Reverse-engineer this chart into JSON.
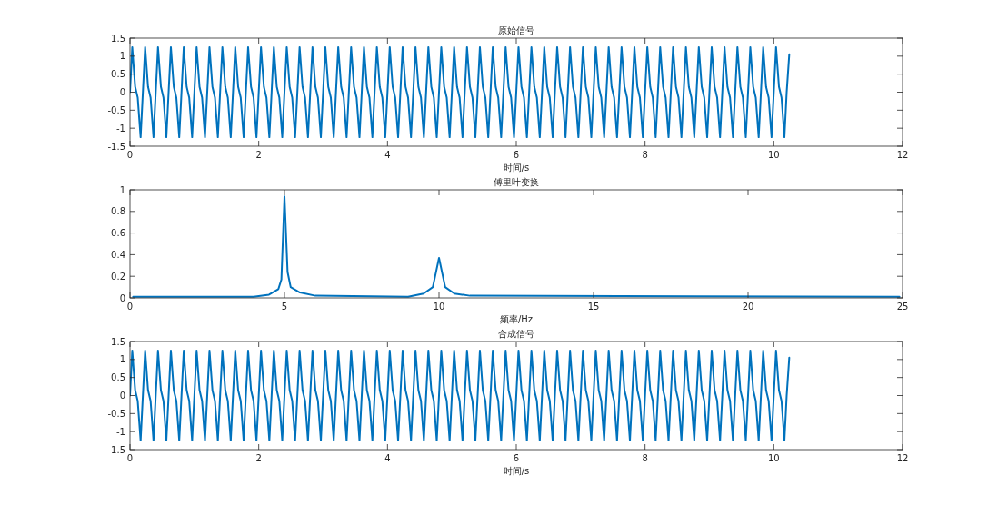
{
  "chart_data": [
    {
      "type": "line",
      "title": "原始信号",
      "xlabel": "时间/s",
      "xlim": [
        0,
        12
      ],
      "ylim": [
        -1.5,
        1.5
      ],
      "xticks": [
        0,
        2,
        4,
        6,
        8,
        10,
        12
      ],
      "yticks": [
        -1.5,
        -1,
        -0.5,
        0,
        0.5,
        1,
        1.5
      ],
      "grid": false,
      "series": [
        {
          "color": "#0072bd",
          "x": [
            0,
            0.035,
            0.08,
            0.12,
            0.165,
            0.2,
            0.235,
            0.28,
            0.32,
            0.365,
            0.4,
            0.435,
            0.48,
            0.52,
            0.565,
            0.6,
            0.635,
            0.68,
            0.72,
            0.765,
            0.8,
            0.835,
            0.88,
            0.92,
            0.965,
            1,
            1.035,
            1.08,
            1.12,
            1.165,
            1.2,
            1.235,
            1.28,
            1.32,
            1.365,
            1.4,
            1.435,
            1.48,
            1.52,
            1.565,
            1.6,
            1.635,
            1.68,
            1.72,
            1.765,
            1.8,
            1.835,
            1.88,
            1.92,
            1.965,
            2,
            2.035,
            2.08,
            2.12,
            2.165,
            2.2,
            2.235,
            2.28,
            2.32,
            2.365,
            2.4,
            2.435,
            2.48,
            2.52,
            2.565,
            2.6,
            2.635,
            2.68,
            2.72,
            2.765,
            2.8,
            2.835,
            2.88,
            2.92,
            2.965,
            3,
            3.035,
            3.08,
            3.12,
            3.165,
            3.2,
            3.235,
            3.28,
            3.32,
            3.365,
            3.4,
            3.435,
            3.48,
            3.52,
            3.565,
            3.6,
            3.635,
            3.68,
            3.72,
            3.765,
            3.8,
            3.835,
            3.88,
            3.92,
            3.965,
            4,
            4.035,
            4.08,
            4.12,
            4.165,
            4.2,
            4.235,
            4.28,
            4.32,
            4.365,
            4.4,
            4.435,
            4.48,
            4.52,
            4.565,
            4.6,
            4.635,
            4.68,
            4.72,
            4.765,
            4.8,
            4.835,
            4.88,
            4.92,
            4.965,
            5,
            5.035,
            5.08,
            5.12,
            5.165,
            5.2,
            5.235,
            5.28,
            5.32,
            5.365,
            5.4,
            5.435,
            5.48,
            5.52,
            5.565,
            5.6,
            5.635,
            5.68,
            5.72,
            5.765,
            5.8,
            5.835,
            5.88,
            5.92,
            5.965,
            6,
            6.035,
            6.08,
            6.12,
            6.165,
            6.2,
            6.235,
            6.28,
            6.32,
            6.365,
            6.4,
            6.435,
            6.48,
            6.52,
            6.565,
            6.6,
            6.635,
            6.68,
            6.72,
            6.765,
            6.8,
            6.835,
            6.88,
            6.92,
            6.965,
            7,
            7.035,
            7.08,
            7.12,
            7.165,
            7.2,
            7.235,
            7.28,
            7.32,
            7.365,
            7.4,
            7.435,
            7.48,
            7.52,
            7.565,
            7.6,
            7.635,
            7.68,
            7.72,
            7.765,
            7.8,
            7.835,
            7.88,
            7.92,
            7.965,
            8,
            8.035,
            8.08,
            8.12,
            8.165,
            8.2,
            8.235,
            8.28,
            8.32,
            8.365,
            8.4,
            8.435,
            8.48,
            8.52,
            8.565,
            8.6,
            8.635,
            8.68,
            8.72,
            8.765,
            8.8,
            8.835,
            8.88,
            8.92,
            8.965,
            9,
            9.035,
            9.08,
            9.12,
            9.165,
            9.2,
            9.235,
            9.28,
            9.32,
            9.365,
            9.4,
            9.435,
            9.48,
            9.52,
            9.565,
            9.6,
            9.635,
            9.68,
            9.72,
            9.765,
            9.8,
            9.835,
            9.88,
            9.92,
            9.965,
            10,
            10.035,
            10.08,
            10.12,
            10.165,
            10.2,
            10.24
          ],
          "values": [
            0,
            1.25,
            0.15,
            -0.15,
            -1.25,
            0,
            1.25,
            0.15,
            -0.15,
            -1.25,
            0,
            1.25,
            0.15,
            -0.15,
            -1.25,
            0,
            1.25,
            0.15,
            -0.15,
            -1.25,
            0,
            1.25,
            0.15,
            -0.15,
            -1.25,
            0,
            1.25,
            0.15,
            -0.15,
            -1.25,
            0,
            1.25,
            0.15,
            -0.15,
            -1.25,
            0,
            1.25,
            0.15,
            -0.15,
            -1.25,
            0,
            1.25,
            0.15,
            -0.15,
            -1.25,
            0,
            1.25,
            0.15,
            -0.15,
            -1.25,
            0,
            1.25,
            0.15,
            -0.15,
            -1.25,
            0,
            1.25,
            0.15,
            -0.15,
            -1.25,
            0,
            1.25,
            0.15,
            -0.15,
            -1.25,
            0,
            1.25,
            0.15,
            -0.15,
            -1.25,
            0,
            1.25,
            0.15,
            -0.15,
            -1.25,
            0,
            1.25,
            0.15,
            -0.15,
            -1.25,
            0,
            1.25,
            0.15,
            -0.15,
            -1.25,
            0,
            1.25,
            0.15,
            -0.15,
            -1.25,
            0,
            1.25,
            0.15,
            -0.15,
            -1.25,
            0,
            1.25,
            0.15,
            -0.15,
            -1.25,
            0,
            1.25,
            0.15,
            -0.15,
            -1.25,
            0,
            1.25,
            0.15,
            -0.15,
            -1.25,
            0,
            1.25,
            0.15,
            -0.15,
            -1.25,
            0,
            1.25,
            0.15,
            -0.15,
            -1.25,
            0,
            1.25,
            0.15,
            -0.15,
            -1.25,
            0,
            1.25,
            0.15,
            -0.15,
            -1.25,
            0,
            1.25,
            0.15,
            -0.15,
            -1.25,
            0,
            1.25,
            0.15,
            -0.15,
            -1.25,
            0,
            1.25,
            0.15,
            -0.15,
            -1.25,
            0,
            1.25,
            0.15,
            -0.15,
            -1.25,
            0,
            1.25,
            0.15,
            -0.15,
            -1.25,
            0,
            1.25,
            0.15,
            -0.15,
            -1.25,
            0,
            1.25,
            0.15,
            -0.15,
            -1.25,
            0,
            1.25,
            0.15,
            -0.15,
            -1.25,
            0,
            1.25,
            0.15,
            -0.15,
            -1.25,
            0,
            1.25,
            0.15,
            -0.15,
            -1.25,
            0,
            1.25,
            0.15,
            -0.15,
            -1.25,
            0,
            1.25,
            0.15,
            -0.15,
            -1.25,
            0,
            1.25,
            0.15,
            -0.15,
            -1.25,
            0,
            1.25,
            0.15,
            -0.15,
            -1.25,
            0,
            1.25,
            0.15,
            -0.15,
            -1.25,
            0,
            1.25,
            0.15,
            -0.15,
            -1.25,
            0,
            1.25,
            0.15,
            -0.15,
            -1.25,
            0,
            1.25,
            0.15,
            -0.15,
            -1.25,
            0,
            1.25,
            0.15,
            -0.15,
            -1.25,
            0,
            1.25,
            0.15,
            -0.15,
            -1.25,
            0,
            1.25,
            0.15,
            -0.15,
            -1.25,
            0,
            1.25,
            0.15,
            -0.15,
            -1.25,
            0,
            1.25,
            0.15,
            -0.15,
            -1.25,
            0,
            1.25,
            0.15,
            -0.15,
            -1.25,
            0,
            1.25,
            0.15,
            -0.15,
            -1.25,
            0,
            1.05
          ]
        }
      ]
    },
    {
      "type": "line",
      "title": "傅里叶变换",
      "xlabel": "频率/Hz",
      "xlim": [
        0,
        25
      ],
      "ylim": [
        0,
        1
      ],
      "xticks": [
        0,
        5,
        10,
        15,
        20,
        25
      ],
      "yticks": [
        0,
        0.2,
        0.4,
        0.6,
        0.8,
        1
      ],
      "grid": false,
      "series": [
        {
          "color": "#0072bd",
          "x": [
            0.1,
            4,
            4.5,
            4.8,
            4.9,
            5,
            5.1,
            5.2,
            5.5,
            6,
            9,
            9.5,
            9.8,
            10,
            10.2,
            10.5,
            11,
            24.9
          ],
          "values": [
            0.01,
            0.01,
            0.03,
            0.08,
            0.17,
            0.94,
            0.24,
            0.1,
            0.05,
            0.02,
            0.01,
            0.04,
            0.1,
            0.37,
            0.1,
            0.04,
            0.02,
            0.01
          ]
        }
      ]
    },
    {
      "type": "line",
      "title": "合成信号",
      "xlabel": "时间/s",
      "xlim": [
        0,
        12
      ],
      "ylim": [
        -1.5,
        1.5
      ],
      "xticks": [
        0,
        2,
        4,
        6,
        8,
        10,
        12
      ],
      "yticks": [
        -1.5,
        -1,
        -0.5,
        0,
        0.5,
        1,
        1.5
      ],
      "grid": false,
      "series": [
        {
          "color": "#0072bd",
          "x": [
            0,
            0.035,
            0.08,
            0.12,
            0.165,
            0.2,
            0.235,
            0.28,
            0.32,
            0.365,
            0.4,
            0.435,
            0.48,
            0.52,
            0.565,
            0.6,
            0.635,
            0.68,
            0.72,
            0.765,
            0.8,
            0.835,
            0.88,
            0.92,
            0.965,
            1,
            1.035,
            1.08,
            1.12,
            1.165,
            1.2,
            1.235,
            1.28,
            1.32,
            1.365,
            1.4,
            1.435,
            1.48,
            1.52,
            1.565,
            1.6,
            1.635,
            1.68,
            1.72,
            1.765,
            1.8,
            1.835,
            1.88,
            1.92,
            1.965,
            2,
            2.035,
            2.08,
            2.12,
            2.165,
            2.2,
            2.235,
            2.28,
            2.32,
            2.365,
            2.4,
            2.435,
            2.48,
            2.52,
            2.565,
            2.6,
            2.635,
            2.68,
            2.72,
            2.765,
            2.8,
            2.835,
            2.88,
            2.92,
            2.965,
            3,
            3.035,
            3.08,
            3.12,
            3.165,
            3.2,
            3.235,
            3.28,
            3.32,
            3.365,
            3.4,
            3.435,
            3.48,
            3.52,
            3.565,
            3.6,
            3.635,
            3.68,
            3.72,
            3.765,
            3.8,
            3.835,
            3.88,
            3.92,
            3.965,
            4,
            4.035,
            4.08,
            4.12,
            4.165,
            4.2,
            4.235,
            4.28,
            4.32,
            4.365,
            4.4,
            4.435,
            4.48,
            4.52,
            4.565,
            4.6,
            4.635,
            4.68,
            4.72,
            4.765,
            4.8,
            4.835,
            4.88,
            4.92,
            4.965,
            5,
            5.035,
            5.08,
            5.12,
            5.165,
            5.2,
            5.235,
            5.28,
            5.32,
            5.365,
            5.4,
            5.435,
            5.48,
            5.52,
            5.565,
            5.6,
            5.635,
            5.68,
            5.72,
            5.765,
            5.8,
            5.835,
            5.88,
            5.92,
            5.965,
            6,
            6.035,
            6.08,
            6.12,
            6.165,
            6.2,
            6.235,
            6.28,
            6.32,
            6.365,
            6.4,
            6.435,
            6.48,
            6.52,
            6.565,
            6.6,
            6.635,
            6.68,
            6.72,
            6.765,
            6.8,
            6.835,
            6.88,
            6.92,
            6.965,
            7,
            7.035,
            7.08,
            7.12,
            7.165,
            7.2,
            7.235,
            7.28,
            7.32,
            7.365,
            7.4,
            7.435,
            7.48,
            7.52,
            7.565,
            7.6,
            7.635,
            7.68,
            7.72,
            7.765,
            7.8,
            7.835,
            7.88,
            7.92,
            7.965,
            8,
            8.035,
            8.08,
            8.12,
            8.165,
            8.2,
            8.235,
            8.28,
            8.32,
            8.365,
            8.4,
            8.435,
            8.48,
            8.52,
            8.565,
            8.6,
            8.635,
            8.68,
            8.72,
            8.765,
            8.8,
            8.835,
            8.88,
            8.92,
            8.965,
            9,
            9.035,
            9.08,
            9.12,
            9.165,
            9.2,
            9.235,
            9.28,
            9.32,
            9.365,
            9.4,
            9.435,
            9.48,
            9.52,
            9.565,
            9.6,
            9.635,
            9.68,
            9.72,
            9.765,
            9.8,
            9.835,
            9.88,
            9.92,
            9.965,
            10,
            10.035,
            10.08,
            10.12,
            10.165,
            10.2,
            10.24
          ],
          "values": [
            0,
            1.25,
            0.15,
            -0.15,
            -1.25,
            0,
            1.25,
            0.15,
            -0.15,
            -1.25,
            0,
            1.25,
            0.15,
            -0.15,
            -1.25,
            0,
            1.25,
            0.15,
            -0.15,
            -1.25,
            0,
            1.25,
            0.15,
            -0.15,
            -1.25,
            0,
            1.25,
            0.15,
            -0.15,
            -1.25,
            0,
            1.25,
            0.15,
            -0.15,
            -1.25,
            0,
            1.25,
            0.15,
            -0.15,
            -1.25,
            0,
            1.25,
            0.15,
            -0.15,
            -1.25,
            0,
            1.25,
            0.15,
            -0.15,
            -1.25,
            0,
            1.25,
            0.15,
            -0.15,
            -1.25,
            0,
            1.25,
            0.15,
            -0.15,
            -1.25,
            0,
            1.25,
            0.15,
            -0.15,
            -1.25,
            0,
            1.25,
            0.15,
            -0.15,
            -1.25,
            0,
            1.25,
            0.15,
            -0.15,
            -1.25,
            0,
            1.25,
            0.15,
            -0.15,
            -1.25,
            0,
            1.25,
            0.15,
            -0.15,
            -1.25,
            0,
            1.25,
            0.15,
            -0.15,
            -1.25,
            0,
            1.25,
            0.15,
            -0.15,
            -1.25,
            0,
            1.25,
            0.15,
            -0.15,
            -1.25,
            0,
            1.25,
            0.15,
            -0.15,
            -1.25,
            0,
            1.25,
            0.15,
            -0.15,
            -1.25,
            0,
            1.25,
            0.15,
            -0.15,
            -1.25,
            0,
            1.25,
            0.15,
            -0.15,
            -1.25,
            0,
            1.25,
            0.15,
            -0.15,
            -1.25,
            0,
            1.25,
            0.15,
            -0.15,
            -1.25,
            0,
            1.25,
            0.15,
            -0.15,
            -1.25,
            0,
            1.25,
            0.15,
            -0.15,
            -1.25,
            0,
            1.25,
            0.15,
            -0.15,
            -1.25,
            0,
            1.25,
            0.15,
            -0.15,
            -1.25,
            0,
            1.25,
            0.15,
            -0.15,
            -1.25,
            0,
            1.25,
            0.15,
            -0.15,
            -1.25,
            0,
            1.25,
            0.15,
            -0.15,
            -1.25,
            0,
            1.25,
            0.15,
            -0.15,
            -1.25,
            0,
            1.25,
            0.15,
            -0.15,
            -1.25,
            0,
            1.25,
            0.15,
            -0.15,
            -1.25,
            0,
            1.25,
            0.15,
            -0.15,
            -1.25,
            0,
            1.25,
            0.15,
            -0.15,
            -1.25,
            0,
            1.25,
            0.15,
            -0.15,
            -1.25,
            0,
            1.25,
            0.15,
            -0.15,
            -1.25,
            0,
            1.25,
            0.15,
            -0.15,
            -1.25,
            0,
            1.25,
            0.15,
            -0.15,
            -1.25,
            0,
            1.25,
            0.15,
            -0.15,
            -1.25,
            0,
            1.25,
            0.15,
            -0.15,
            -1.25,
            0,
            1.25,
            0.15,
            -0.15,
            -1.25,
            0,
            1.25,
            0.15,
            -0.15,
            -1.25,
            0,
            1.25,
            0.15,
            -0.15,
            -1.25,
            0,
            1.25,
            0.15,
            -0.15,
            -1.25,
            0,
            1.25,
            0.15,
            -0.15,
            -1.25,
            0,
            1.25,
            0.15,
            -0.15,
            -1.25,
            0,
            1.25,
            0.15,
            -0.15,
            -1.25,
            0,
            1.05
          ]
        }
      ]
    }
  ]
}
